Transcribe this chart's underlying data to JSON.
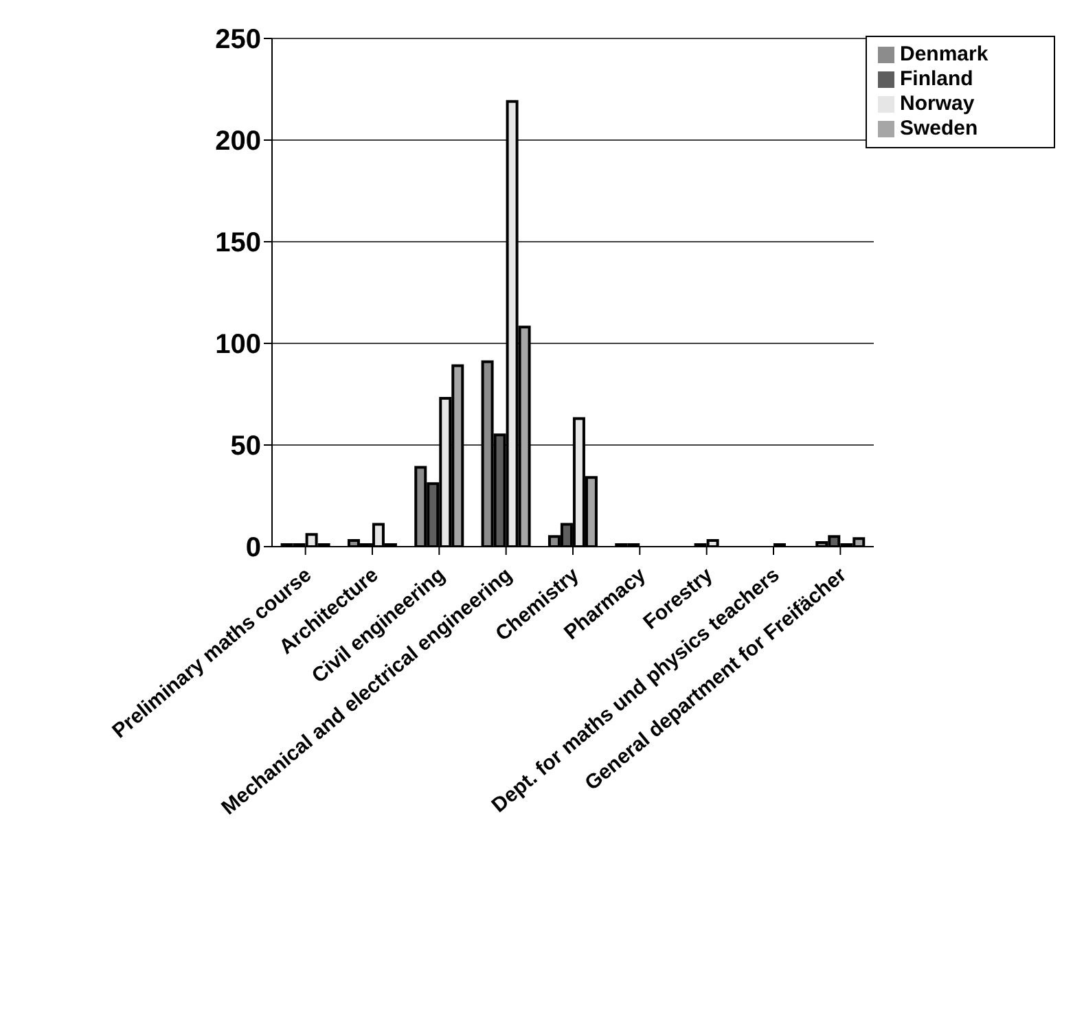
{
  "chart_data": {
    "type": "bar",
    "categories": [
      "Preliminary maths course",
      "Architecture",
      "Civil engineering",
      "Mechanical and electrical engineering",
      "Chemistry",
      "Pharmacy",
      "Forestry",
      "Dept. for maths und physics teachers",
      "General department for Freifächer"
    ],
    "series": [
      {
        "name": "Denmark",
        "color": "#8c8c8c",
        "values": [
          1,
          3,
          39,
          91,
          5,
          1,
          0,
          0,
          2
        ]
      },
      {
        "name": "Finland",
        "color": "#5e5e5e",
        "values": [
          1,
          1,
          31,
          55,
          11,
          1,
          1,
          0,
          5
        ]
      },
      {
        "name": "Norway",
        "color": "#e6e6e6",
        "values": [
          6,
          11,
          73,
          219,
          63,
          0,
          3,
          1,
          1
        ]
      },
      {
        "name": "Sweden",
        "color": "#a6a6a6",
        "values": [
          1,
          1,
          89,
          108,
          34,
          0,
          0,
          0,
          4
        ]
      }
    ],
    "ylim": [
      0,
      250
    ],
    "yticks": [
      0,
      50,
      100,
      150,
      200,
      250
    ],
    "grid": "y",
    "legend": "top right"
  }
}
